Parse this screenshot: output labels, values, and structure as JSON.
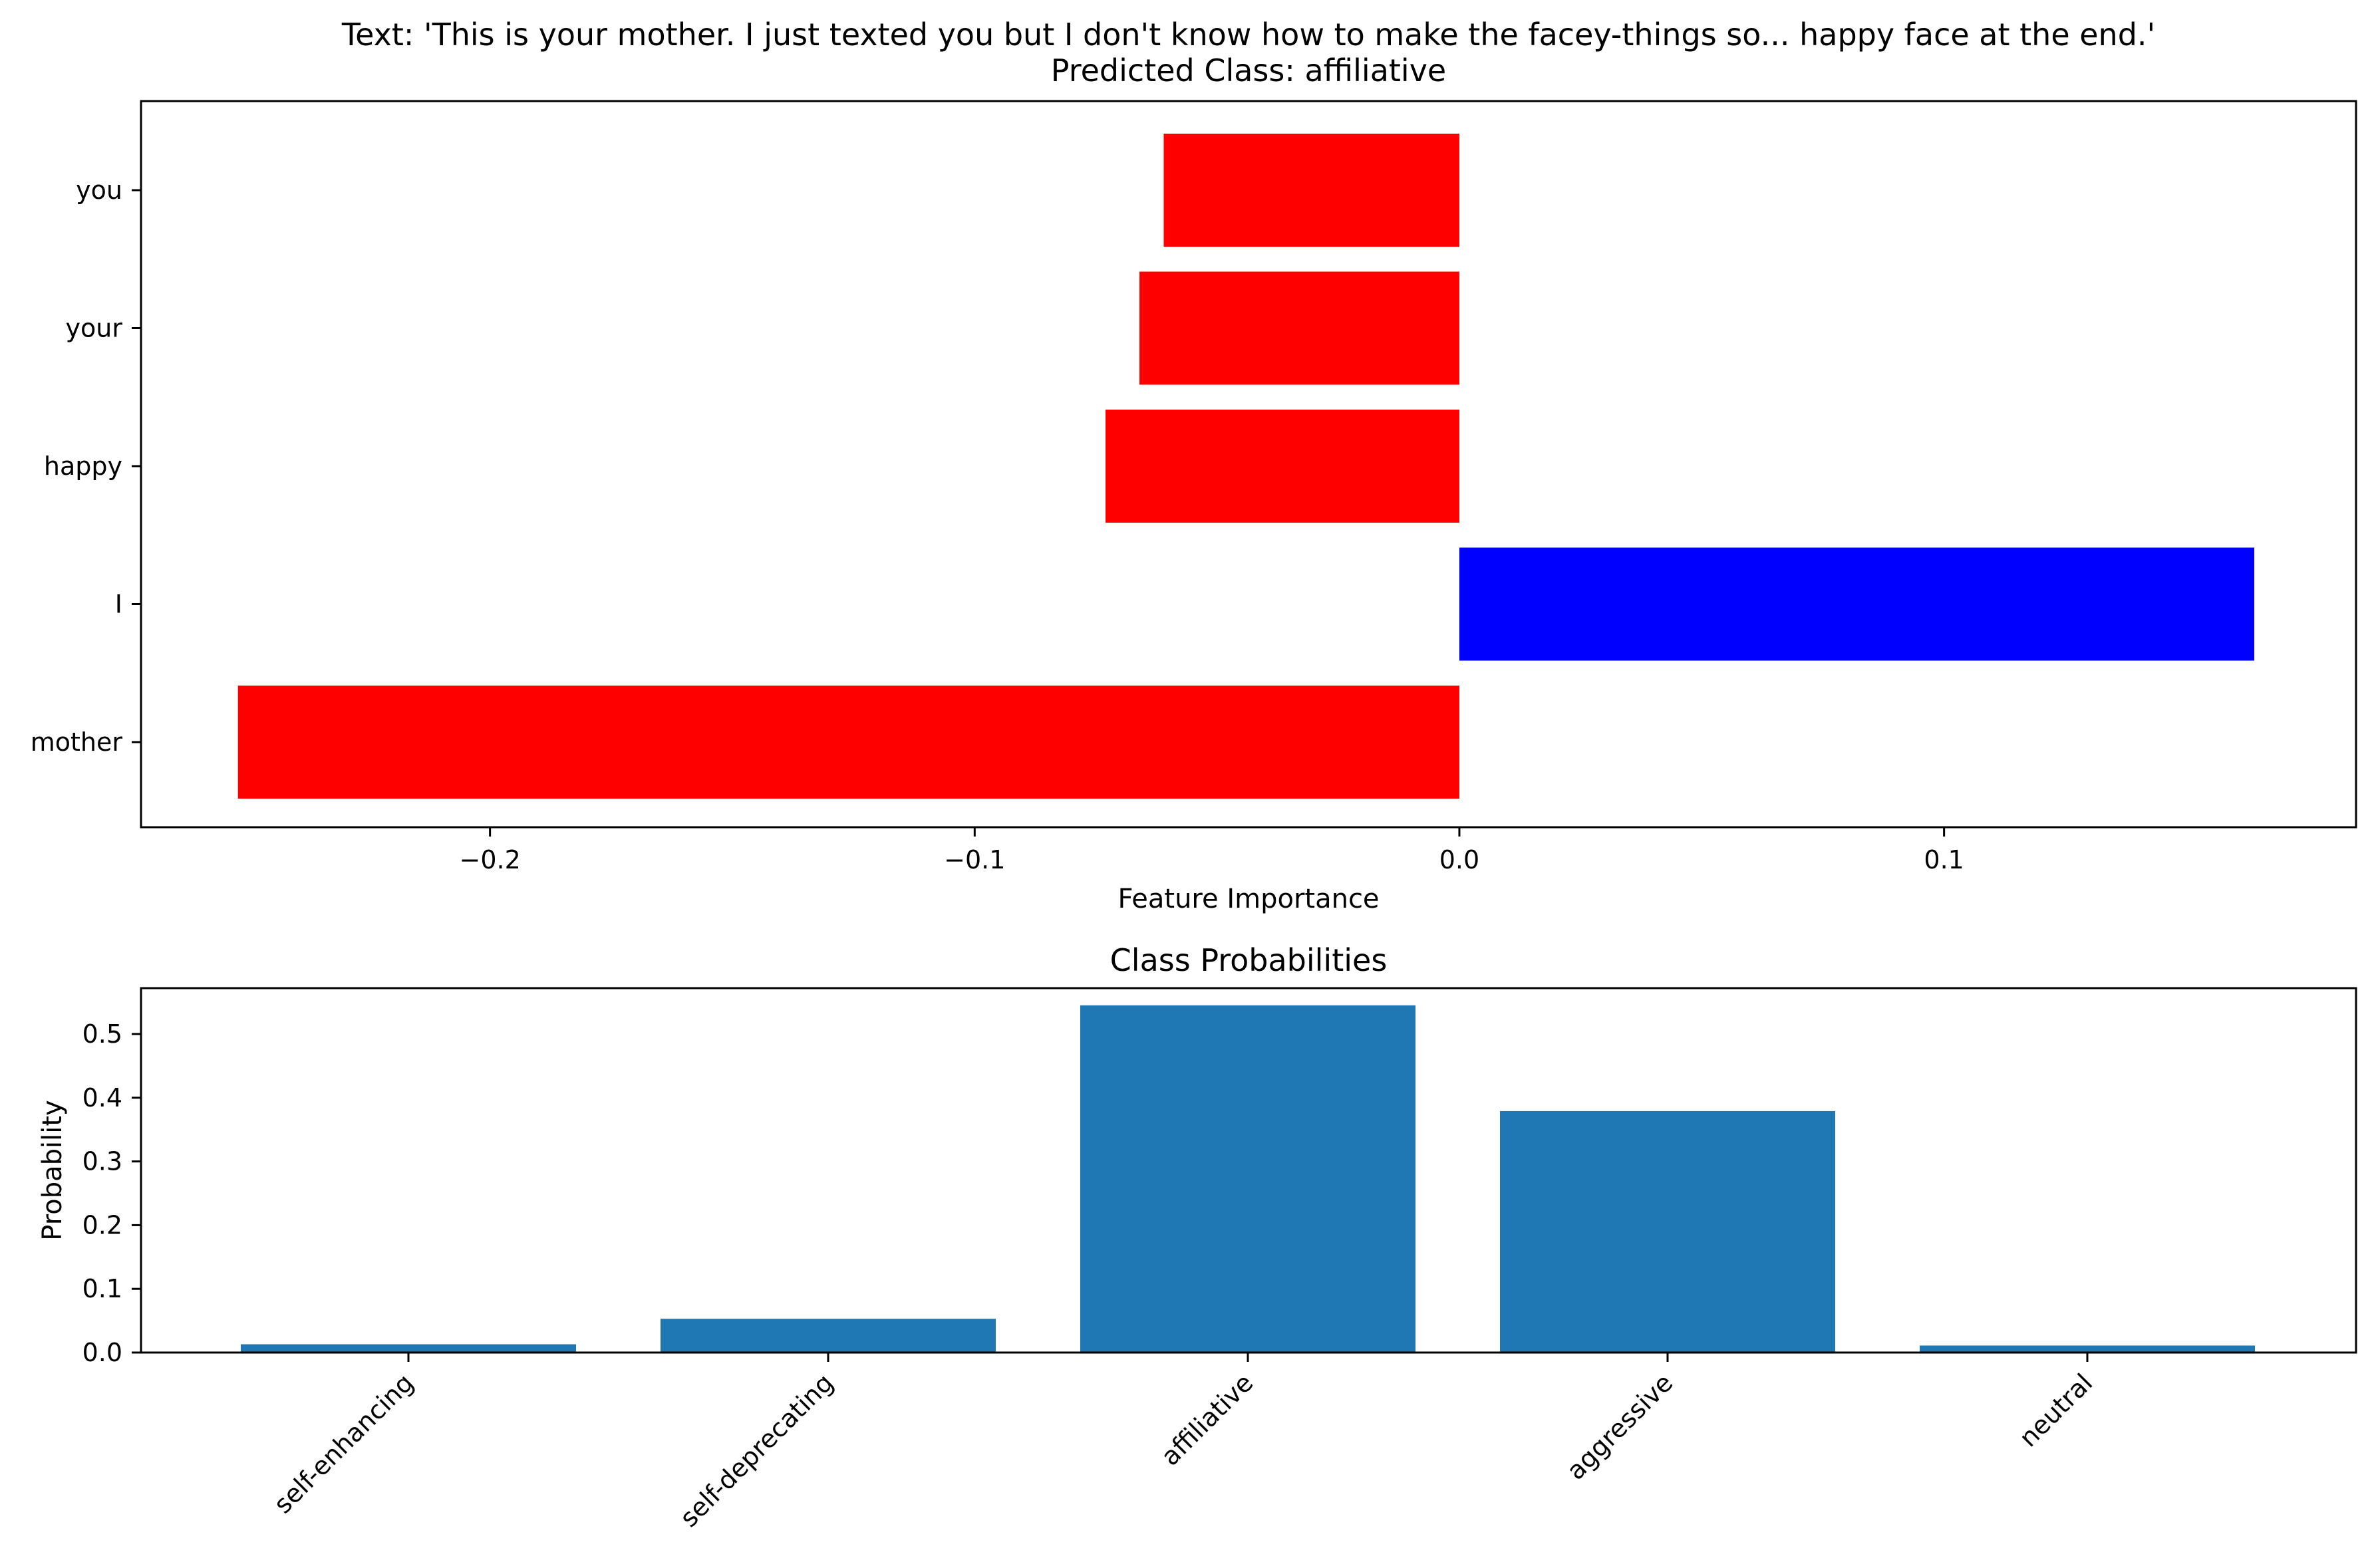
{
  "chart_data": [
    {
      "type": "bar",
      "orientation": "horizontal",
      "title": "Text: 'This is your mother. I just texted you but I don't know how to make the facey-things so... happy face at the end.'",
      "subtitle": "Predicted Class: affiliative",
      "xlabel": "Feature Importance",
      "ylabel": "",
      "categories": [
        "you",
        "your",
        "happy",
        "I",
        "mother"
      ],
      "values": [
        -0.061,
        -0.066,
        -0.073,
        0.164,
        -0.252
      ],
      "colors": [
        "#ff0000",
        "#ff0000",
        "#ff0000",
        "#0000ff",
        "#ff0000"
      ],
      "xlim": [
        -0.272,
        0.185
      ],
      "xticks": [
        -0.2,
        -0.1,
        0.0,
        0.1
      ],
      "xtick_labels": [
        "−0.2",
        "−0.1",
        "0.0",
        "0.1"
      ],
      "grid": false
    },
    {
      "type": "bar",
      "title": "Class Probabilities",
      "xlabel": "",
      "ylabel": "Probability",
      "categories": [
        "self-enhancing",
        "self-deprecating",
        "affiliative",
        "aggressive",
        "neutral"
      ],
      "values": [
        0.013,
        0.053,
        0.545,
        0.379,
        0.011
      ],
      "color": "#1f77b4",
      "ylim": [
        0.0,
        0.572
      ],
      "yticks": [
        0.0,
        0.1,
        0.2,
        0.3,
        0.4,
        0.5
      ],
      "ytick_labels": [
        "0.0",
        "0.1",
        "0.2",
        "0.3",
        "0.4",
        "0.5"
      ],
      "grid": false
    }
  ]
}
